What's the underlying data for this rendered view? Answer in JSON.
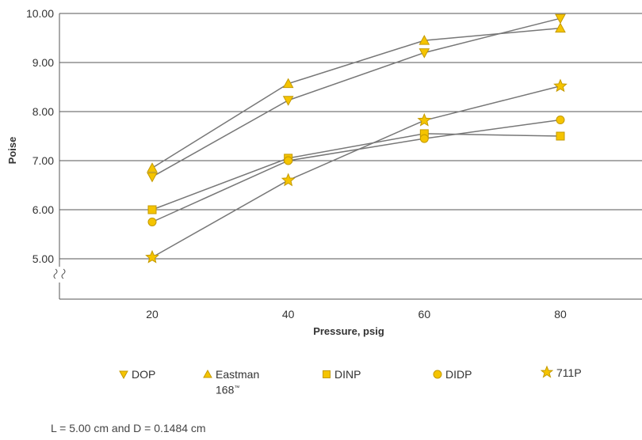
{
  "chart_data": {
    "type": "line",
    "xlabel": "Pressure, psig",
    "ylabel": "Poise",
    "x": [
      20,
      40,
      60,
      80
    ],
    "x_ticks": [
      "20",
      "40",
      "60",
      "80"
    ],
    "y_ticks": [
      "5.00",
      "6.00",
      "7.00",
      "8.00",
      "9.00",
      "10.00"
    ],
    "ylim": [
      5.0,
      10.0
    ],
    "y_axis_break": true,
    "grid": "horizontal",
    "legend_position": "bottom",
    "series": [
      {
        "name": "DOP",
        "marker": "triangle-down",
        "values": [
          6.67,
          8.23,
          9.2,
          9.9
        ]
      },
      {
        "name": "Eastman 168",
        "name_mark": "™",
        "marker": "triangle-up",
        "values": [
          6.85,
          8.57,
          9.45,
          9.7
        ]
      },
      {
        "name": "DINP",
        "marker": "square",
        "values": [
          6.0,
          7.05,
          7.55,
          7.5
        ]
      },
      {
        "name": "DIDP",
        "marker": "circle",
        "values": [
          5.75,
          7.0,
          7.45,
          7.83
        ]
      },
      {
        "name": "711P",
        "marker": "star",
        "values": [
          5.03,
          6.6,
          7.82,
          8.52
        ]
      }
    ],
    "colors": {
      "marker_fill": "#f5c400",
      "marker_stroke": "#c49a00",
      "line": "#777777",
      "grid": "#555555"
    }
  },
  "legend": {
    "items": [
      {
        "label": "DOP"
      },
      {
        "label": "Eastman",
        "label2": "168",
        "mark": "™"
      },
      {
        "label": "DINP"
      },
      {
        "label": "DIDP"
      },
      {
        "label": "711P"
      }
    ]
  },
  "footnote": "L = 5.00 cm and D = 0.1484 cm"
}
